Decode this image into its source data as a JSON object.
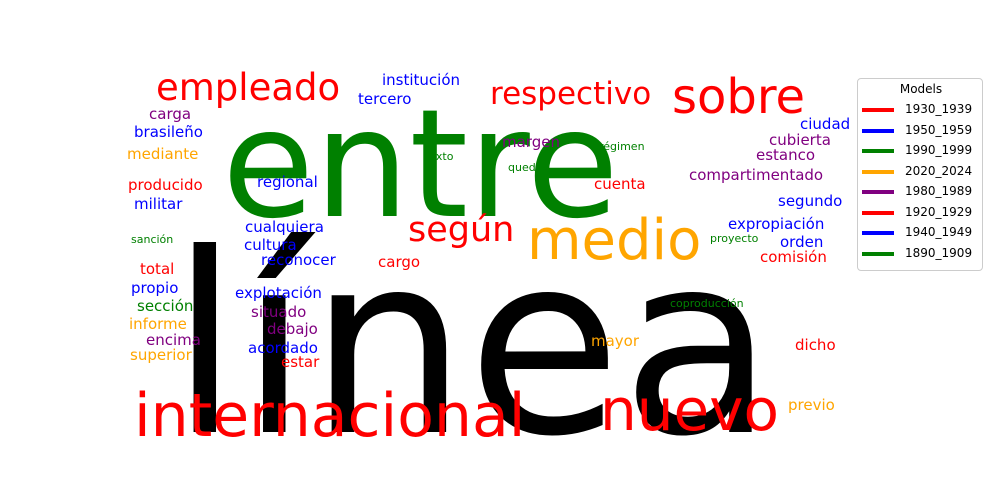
{
  "legend": {
    "title": "Models",
    "entries": [
      {
        "label": "1930_1939",
        "color": "#ff0000"
      },
      {
        "label": "1950_1959",
        "color": "#0000ff"
      },
      {
        "label": "1990_1999",
        "color": "#008000"
      },
      {
        "label": "2020_2024",
        "color": "#ffa500"
      },
      {
        "label": "1980_1989",
        "color": "#800080"
      },
      {
        "label": "1920_1929",
        "color": "#ff0000"
      },
      {
        "label": "1940_1949",
        "color": "#0000ff"
      },
      {
        "label": "1890_1909",
        "color": "#008000"
      }
    ]
  },
  "words": [
    {
      "text": "línea",
      "color": "#000000"
    },
    {
      "text": "entre",
      "color": "#008000"
    },
    {
      "text": "internacional",
      "color": "#ff0000"
    },
    {
      "text": "nuevo",
      "color": "#ff0000"
    },
    {
      "text": "medio",
      "color": "#ffa500"
    },
    {
      "text": "sobre",
      "color": "#ff0000"
    },
    {
      "text": "empleado",
      "color": "#ff0000"
    },
    {
      "text": "respectivo",
      "color": "#ff0000"
    },
    {
      "text": "según",
      "color": "#ff0000"
    },
    {
      "text": "institución",
      "color": "#0000ff"
    },
    {
      "text": "tercero",
      "color": "#0000ff"
    },
    {
      "text": "carga",
      "color": "#800080"
    },
    {
      "text": "brasileño",
      "color": "#0000ff"
    },
    {
      "text": "mediante",
      "color": "#ffa500"
    },
    {
      "text": "producido",
      "color": "#ff0000"
    },
    {
      "text": "militar",
      "color": "#0000ff"
    },
    {
      "text": "sanción",
      "color": "#008000"
    },
    {
      "text": "total",
      "color": "#ff0000"
    },
    {
      "text": "propio",
      "color": "#0000ff"
    },
    {
      "text": "sección",
      "color": "#008000"
    },
    {
      "text": "informe",
      "color": "#ffa500"
    },
    {
      "text": "encima",
      "color": "#800080"
    },
    {
      "text": "superior",
      "color": "#ffa500"
    },
    {
      "text": "regional",
      "color": "#0000ff"
    },
    {
      "text": "cualquiera",
      "color": "#0000ff"
    },
    {
      "text": "cultura",
      "color": "#0000ff"
    },
    {
      "text": "reconocer",
      "color": "#0000ff"
    },
    {
      "text": "explotación",
      "color": "#0000ff"
    },
    {
      "text": "situado",
      "color": "#800080"
    },
    {
      "text": "debajo",
      "color": "#800080"
    },
    {
      "text": "acordado",
      "color": "#0000ff"
    },
    {
      "text": "estar",
      "color": "#ff0000"
    },
    {
      "text": "cargo",
      "color": "#ff0000"
    },
    {
      "text": "margen",
      "color": "#800080"
    },
    {
      "text": "texto",
      "color": "#008000"
    },
    {
      "text": "quedar",
      "color": "#008000"
    },
    {
      "text": "régimen",
      "color": "#008000"
    },
    {
      "text": "cuenta",
      "color": "#ff0000"
    },
    {
      "text": "compartimentado",
      "color": "#800080"
    },
    {
      "text": "ciudad",
      "color": "#0000ff"
    },
    {
      "text": "cubierta",
      "color": "#800080"
    },
    {
      "text": "estanco",
      "color": "#800080"
    },
    {
      "text": "segundo",
      "color": "#0000ff"
    },
    {
      "text": "expropiación",
      "color": "#0000ff"
    },
    {
      "text": "proyecto",
      "color": "#008000"
    },
    {
      "text": "orden",
      "color": "#0000ff"
    },
    {
      "text": "comisión",
      "color": "#ff0000"
    },
    {
      "text": "coproducción",
      "color": "#008000"
    },
    {
      "text": "mayor",
      "color": "#ffa500"
    },
    {
      "text": "dicho",
      "color": "#ff0000"
    },
    {
      "text": "previo",
      "color": "#ffa500"
    }
  ]
}
